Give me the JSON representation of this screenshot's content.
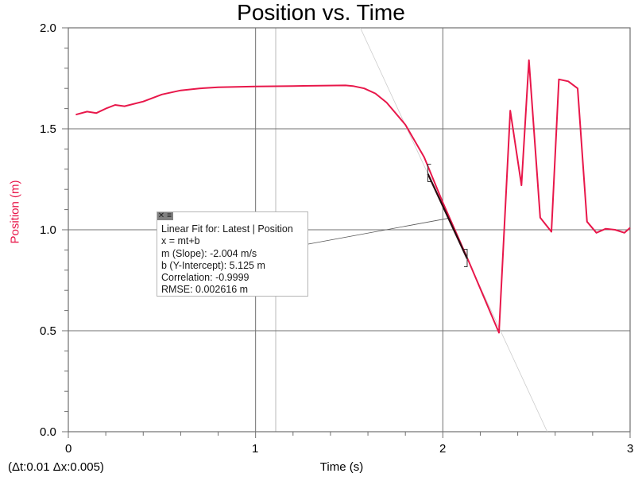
{
  "chart": {
    "title": "Position vs. Time",
    "xlabel": "Time (s)",
    "ylabel": "Position (m)",
    "deltas": "(Δt:0.01 Δx:0.005)",
    "y_ticks": [
      "2.0",
      "1.5",
      "1.0",
      "0.5",
      "0.0"
    ],
    "x_ticks": [
      "0",
      "1",
      "2",
      "3"
    ]
  },
  "fit_box": {
    "close_icon": "✕",
    "menu_icon": "≡",
    "lines": [
      "Linear Fit for: Latest | Position",
      "x = mt+b",
      "m (Slope): -2.004 m/s",
      "b (Y-Intercept): 5.125 m",
      "Correlation: -0.9999",
      "RMSE: 0.002616 m"
    ]
  },
  "colors": {
    "series": "#e8174a",
    "fit_line": "#2a0a10",
    "grid": "#707070",
    "cursor_line": "#d0d0d0"
  },
  "chart_data": {
    "type": "line",
    "title": "Position vs. Time",
    "xlabel": "Time (s)",
    "ylabel": "Position (m)",
    "xlim": [
      0,
      3
    ],
    "ylim": [
      0,
      2
    ],
    "grid": true,
    "series": [
      {
        "name": "Latest | Position",
        "x": [
          0.04,
          0.1,
          0.15,
          0.2,
          0.25,
          0.3,
          0.4,
          0.5,
          0.6,
          0.7,
          0.8,
          1.0,
          1.2,
          1.48,
          1.52,
          1.58,
          1.64,
          1.7,
          1.8,
          1.9,
          2.0,
          2.14,
          2.3,
          2.36,
          2.42,
          2.46,
          2.52,
          2.58,
          2.62,
          2.67,
          2.72,
          2.77,
          2.82,
          2.87,
          2.92,
          2.97,
          3.0
        ],
        "y": [
          1.57,
          1.585,
          1.578,
          1.6,
          1.618,
          1.612,
          1.635,
          1.67,
          1.69,
          1.7,
          1.706,
          1.71,
          1.712,
          1.715,
          1.712,
          1.7,
          1.675,
          1.63,
          1.52,
          1.36,
          1.135,
          0.84,
          0.49,
          1.59,
          1.22,
          1.84,
          1.06,
          0.99,
          1.745,
          1.735,
          1.7,
          1.04,
          0.985,
          1.005,
          1.0,
          0.985,
          1.01
        ]
      }
    ],
    "linear_fit": {
      "slope": -2.004,
      "intercept": 5.125,
      "correlation": -0.9999,
      "rmse": 0.002616,
      "range": [
        1.92,
        2.13
      ]
    },
    "annotations": [
      "Linear Fit for: Latest | Position",
      "(Δt:0.01 Δx:0.005)"
    ]
  }
}
